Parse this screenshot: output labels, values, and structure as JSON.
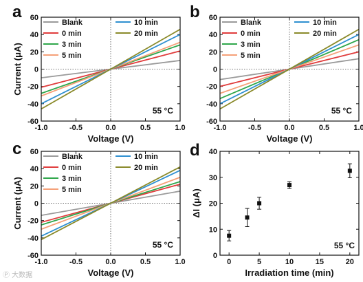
{
  "watermark": "Ⓟ 大数据",
  "iv_series": [
    {
      "name": "Blank",
      "color": "#9a9a9a"
    },
    {
      "name": "0 min",
      "color": "#e03c3c"
    },
    {
      "name": "3 min",
      "color": "#2ea64a"
    },
    {
      "name": "5 min",
      "color": "#f5a078"
    },
    {
      "name": "10 min",
      "color": "#2e8fd0"
    },
    {
      "name": "20 min",
      "color": "#8a8a2a"
    }
  ],
  "chart_data": [
    {
      "panel": "a",
      "type": "line",
      "xlabel": "Voltage (V)",
      "ylabel": "Current (μA)",
      "xlim": [
        -1.0,
        1.0
      ],
      "ylim": [
        -60,
        60
      ],
      "xticks": [
        "-1.0",
        "-0.5",
        "0.0",
        "0.5",
        "1.0"
      ],
      "yticks": [
        "-60",
        "-40",
        "-20",
        "0",
        "20",
        "40",
        "60"
      ],
      "annotation": "55 °C",
      "series": [
        {
          "name": "Blank",
          "x": [
            -1.0,
            1.0
          ],
          "y": [
            -10,
            10
          ]
        },
        {
          "name": "0 min",
          "x": [
            -1.0,
            1.0
          ],
          "y": [
            -21,
            21
          ]
        },
        {
          "name": "3 min",
          "x": [
            -1.0,
            1.0
          ],
          "y": [
            -28,
            28
          ]
        },
        {
          "name": "5 min",
          "x": [
            -1.0,
            1.0
          ],
          "y": [
            -31,
            31
          ]
        },
        {
          "name": "10 min",
          "x": [
            -1.0,
            1.0
          ],
          "y": [
            -40,
            40
          ]
        },
        {
          "name": "20 min",
          "x": [
            -1.0,
            1.0
          ],
          "y": [
            -46,
            46
          ]
        }
      ]
    },
    {
      "panel": "b",
      "type": "line",
      "xlabel": "Voltage (V)",
      "ylabel": "",
      "xlim": [
        -1.0,
        1.0
      ],
      "ylim": [
        -60,
        60
      ],
      "xticks": [
        "-1.0",
        "-0.5",
        "0.0",
        "0.5",
        "1.0"
      ],
      "yticks": [
        "-60",
        "-40",
        "-20",
        "0",
        "20",
        "40",
        "60"
      ],
      "annotation": "55 °C",
      "series": [
        {
          "name": "Blank",
          "x": [
            -1.0,
            1.0
          ],
          "y": [
            -12,
            12
          ]
        },
        {
          "name": "0 min",
          "x": [
            -1.0,
            1.0
          ],
          "y": [
            -20,
            20
          ]
        },
        {
          "name": "3 min",
          "x": [
            -1.0,
            1.0
          ],
          "y": [
            -34,
            34
          ]
        },
        {
          "name": "5 min",
          "x": [
            -1.0,
            1.0
          ],
          "y": [
            -28,
            28
          ]
        },
        {
          "name": "10 min",
          "x": [
            -1.0,
            1.0
          ],
          "y": [
            -40,
            40
          ]
        },
        {
          "name": "20 min",
          "x": [
            -1.0,
            1.0
          ],
          "y": [
            -46,
            46
          ]
        }
      ]
    },
    {
      "panel": "c",
      "type": "line",
      "xlabel": "Voltage (V)",
      "ylabel": "Current (μA)",
      "xlim": [
        -1.0,
        1.0
      ],
      "ylim": [
        -60,
        60
      ],
      "xticks": [
        "-1.0",
        "-0.5",
        "0.0",
        "0.5",
        "1.0"
      ],
      "yticks": [
        "-60",
        "-40",
        "-20",
        "0",
        "20",
        "40",
        "60"
      ],
      "annotation": "55 °C",
      "series": [
        {
          "name": "Blank",
          "x": [
            -1.0,
            1.0
          ],
          "y": [
            -14,
            14
          ]
        },
        {
          "name": "0 min",
          "x": [
            -1.0,
            1.0
          ],
          "y": [
            -22,
            22
          ]
        },
        {
          "name": "3 min",
          "x": [
            -1.0,
            1.0
          ],
          "y": [
            -25,
            25
          ]
        },
        {
          "name": "5 min",
          "x": [
            -1.0,
            1.0
          ],
          "y": [
            -30,
            30
          ]
        },
        {
          "name": "10 min",
          "x": [
            -1.0,
            1.0
          ],
          "y": [
            -38,
            38
          ]
        },
        {
          "name": "20 min",
          "x": [
            -1.0,
            1.0
          ],
          "y": [
            -42,
            42
          ]
        }
      ]
    },
    {
      "panel": "d",
      "type": "scatter",
      "xlabel": "Irradiation time (min)",
      "ylabel": "ΔI (μA)",
      "xlim": [
        -1.5,
        21.5
      ],
      "ylim": [
        0,
        40
      ],
      "xticks": [
        "0",
        "5",
        "10",
        "15",
        "20"
      ],
      "yticks": [
        "0",
        "10",
        "20",
        "30",
        "40"
      ],
      "annotation": "55 °C",
      "x": [
        0,
        3,
        5,
        10,
        20
      ],
      "y": [
        7.5,
        14.5,
        20,
        27,
        32.5
      ],
      "yerr": [
        2,
        3.5,
        2.3,
        1.3,
        2.7
      ]
    }
  ]
}
